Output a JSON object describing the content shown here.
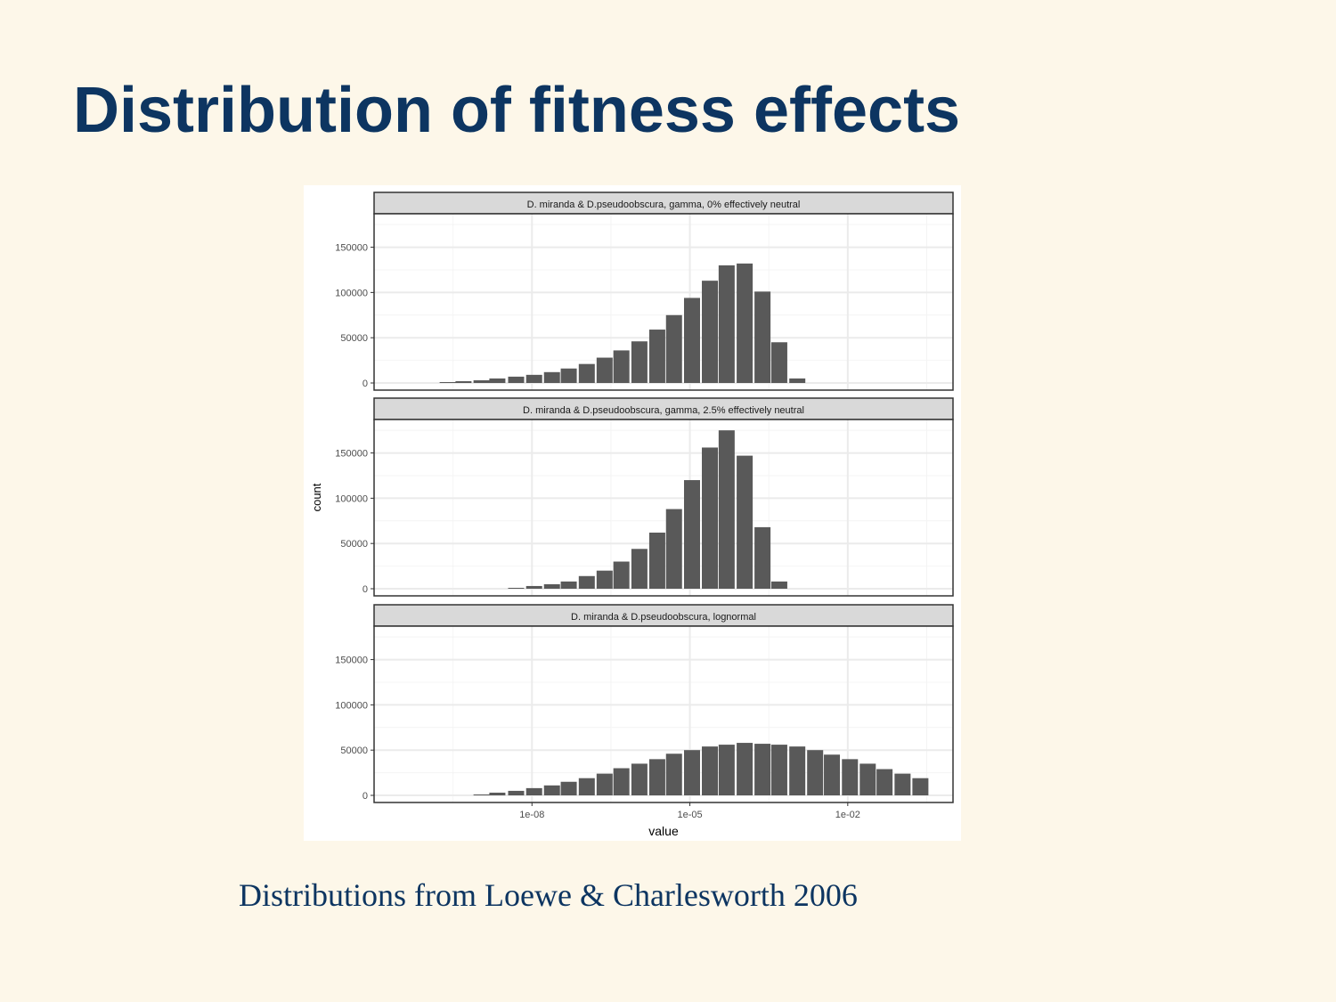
{
  "slide": {
    "title": "Distribution of fitness effects",
    "caption": "Distributions from Loewe & Charlesworth 2006"
  },
  "colors": {
    "background": "#fdf7e9",
    "title": "#0d3561",
    "bar": "#595959",
    "strip": "#d9d9d9",
    "grid_major": "#ebebeb",
    "grid_minor": "#f4f4f4"
  },
  "chart_data": {
    "type": "bar",
    "xlabel": "value",
    "ylabel": "count",
    "x_scale": "log10",
    "xlim": [
      1e-11,
      1
    ],
    "ylim": [
      0,
      185000
    ],
    "x_ticks": [
      1e-08,
      1e-05,
      0.01
    ],
    "x_tick_labels": [
      "1e-08",
      "1e-05",
      "1e-02"
    ],
    "y_ticks": [
      0,
      50000,
      100000,
      150000
    ],
    "y_tick_labels": [
      "0",
      "50000",
      "100000",
      "150000"
    ],
    "grid": true,
    "panels": [
      {
        "strip": "D. miranda & D.pseudoobscura, gamma, 0% effectively neutral",
        "bins": [
          {
            "x": 2.5e-10,
            "count": 1000
          },
          {
            "x": 5e-10,
            "count": 2000
          },
          {
            "x": 1.1e-09,
            "count": 3000
          },
          {
            "x": 2.2e-09,
            "count": 5000
          },
          {
            "x": 5e-09,
            "count": 7000
          },
          {
            "x": 1.1e-08,
            "count": 9000
          },
          {
            "x": 2.4e-08,
            "count": 12000
          },
          {
            "x": 5e-08,
            "count": 16000
          },
          {
            "x": 1.1e-07,
            "count": 21000
          },
          {
            "x": 2.4e-07,
            "count": 28000
          },
          {
            "x": 5e-07,
            "count": 36000
          },
          {
            "x": 1.1e-06,
            "count": 46000
          },
          {
            "x": 2.4e-06,
            "count": 59000
          },
          {
            "x": 5e-06,
            "count": 75000
          },
          {
            "x": 1.1e-05,
            "count": 94000
          },
          {
            "x": 2.4e-05,
            "count": 113000
          },
          {
            "x": 5e-05,
            "count": 130000
          },
          {
            "x": 0.00011,
            "count": 132000
          },
          {
            "x": 0.00024,
            "count": 101000
          },
          {
            "x": 0.0005,
            "count": 45000
          },
          {
            "x": 0.0011,
            "count": 5000
          }
        ]
      },
      {
        "strip": "D. miranda & D.pseudoobscura, gamma, 2.5% effectively neutral",
        "bins": [
          {
            "x": 5e-09,
            "count": 1000
          },
          {
            "x": 1.1e-08,
            "count": 3000
          },
          {
            "x": 2.4e-08,
            "count": 5000
          },
          {
            "x": 5e-08,
            "count": 8000
          },
          {
            "x": 1.1e-07,
            "count": 14000
          },
          {
            "x": 2.4e-07,
            "count": 20000
          },
          {
            "x": 5e-07,
            "count": 30000
          },
          {
            "x": 1.1e-06,
            "count": 44000
          },
          {
            "x": 2.4e-06,
            "count": 62000
          },
          {
            "x": 5e-06,
            "count": 88000
          },
          {
            "x": 1.1e-05,
            "count": 120000
          },
          {
            "x": 2.4e-05,
            "count": 156000
          },
          {
            "x": 5e-05,
            "count": 175000
          },
          {
            "x": 0.00011,
            "count": 147000
          },
          {
            "x": 0.00024,
            "count": 68000
          },
          {
            "x": 0.0005,
            "count": 8000
          }
        ]
      },
      {
        "strip": "D. miranda & D.pseudoobscura, lognormal",
        "bins": [
          {
            "x": 1.1e-09,
            "count": 1000
          },
          {
            "x": 2.2e-09,
            "count": 3000
          },
          {
            "x": 5e-09,
            "count": 5000
          },
          {
            "x": 1.1e-08,
            "count": 8000
          },
          {
            "x": 2.4e-08,
            "count": 11000
          },
          {
            "x": 5e-08,
            "count": 15000
          },
          {
            "x": 1.1e-07,
            "count": 19000
          },
          {
            "x": 2.4e-07,
            "count": 24000
          },
          {
            "x": 5e-07,
            "count": 30000
          },
          {
            "x": 1.1e-06,
            "count": 35000
          },
          {
            "x": 2.4e-06,
            "count": 40000
          },
          {
            "x": 5e-06,
            "count": 46000
          },
          {
            "x": 1.1e-05,
            "count": 50000
          },
          {
            "x": 2.4e-05,
            "count": 54000
          },
          {
            "x": 5e-05,
            "count": 56000
          },
          {
            "x": 0.00011,
            "count": 58000
          },
          {
            "x": 0.00024,
            "count": 57000
          },
          {
            "x": 0.0005,
            "count": 56000
          },
          {
            "x": 0.0011,
            "count": 54000
          },
          {
            "x": 0.0024,
            "count": 50000
          },
          {
            "x": 0.005,
            "count": 45000
          },
          {
            "x": 0.011,
            "count": 40000
          },
          {
            "x": 0.024,
            "count": 35000
          },
          {
            "x": 0.05,
            "count": 29000
          },
          {
            "x": 0.11,
            "count": 24000
          },
          {
            "x": 0.24,
            "count": 19000
          }
        ]
      }
    ]
  }
}
